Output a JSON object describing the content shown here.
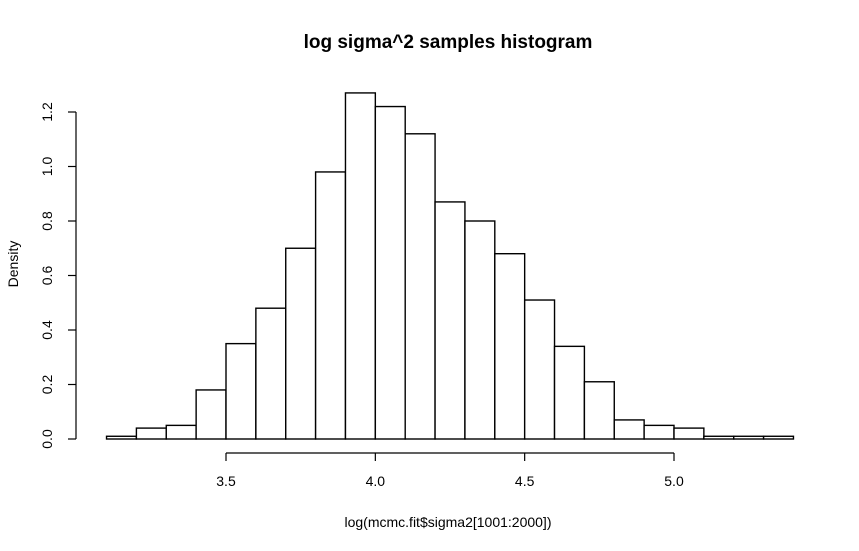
{
  "chart_data": {
    "type": "bar",
    "title": "log sigma^2 samples histogram",
    "xlabel": "log(mcmc.fit$sigma2[1001:2000])",
    "ylabel": "Density",
    "bin_edges": [
      3.1,
      3.2,
      3.3,
      3.4,
      3.5,
      3.6,
      3.7,
      3.8,
      3.9,
      4.0,
      4.1,
      4.2,
      4.3,
      4.4,
      4.5,
      4.6,
      4.7,
      4.8,
      4.9,
      5.0,
      5.1,
      5.2,
      5.3,
      5.4
    ],
    "values": [
      0.01,
      0.04,
      0.05,
      0.18,
      0.35,
      0.48,
      0.7,
      0.98,
      1.27,
      1.22,
      1.12,
      0.87,
      0.8,
      0.68,
      0.51,
      0.34,
      0.21,
      0.07,
      0.05,
      0.04,
      0.01,
      0.01,
      0.01
    ],
    "xticks": [
      3.5,
      4.0,
      4.5,
      5.0
    ],
    "xtick_labels": [
      "3.5",
      "4.0",
      "4.5",
      "5.0"
    ],
    "yticks": [
      0.0,
      0.2,
      0.4,
      0.6,
      0.8,
      1.0,
      1.2
    ],
    "ytick_labels": [
      "0.0",
      "0.2",
      "0.4",
      "0.6",
      "0.8",
      "1.0",
      "1.2"
    ],
    "xlim": [
      3.1,
      5.4
    ],
    "ylim": [
      0,
      1.2
    ],
    "grid": false,
    "legend": "none"
  }
}
